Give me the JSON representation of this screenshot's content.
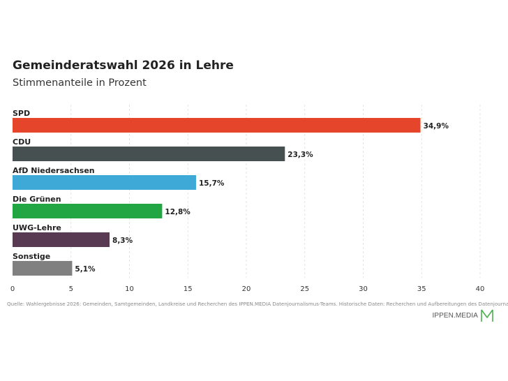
{
  "title": "Gemeinderatswahl 2026 in Lehre",
  "subtitle": "Stimmenanteile in Prozent",
  "source": "Quelle: Wahlergebnisse 2026: Gemeinden, Samtgemeinden, Landkreise und Recherchen des IPPEN.MEDIA Datenjournalismus-Teams. Historische Daten: Recherchen und Aufbereitungen des Datenjournalismus-Teams",
  "brand": {
    "name": "IPPEN.MEDIA",
    "logo_icon": "ippen-media-m-logo",
    "logo_color": "#4caf50"
  },
  "chart_data": {
    "type": "bar",
    "orientation": "horizontal",
    "categories": [
      "SPD",
      "CDU",
      "AfD Niedersachsen",
      "Die Grünen",
      "UWG-Lehre",
      "Sonstige"
    ],
    "values": [
      34.9,
      23.3,
      15.7,
      12.8,
      8.3,
      5.1
    ],
    "value_labels": [
      "34,9%",
      "23,3%",
      "15,7%",
      "12,8%",
      "8,3%",
      "5,1%"
    ],
    "colors": [
      "#e5452b",
      "#465051",
      "#3ea9d6",
      "#22a543",
      "#583a52",
      "#808080"
    ],
    "xlim": [
      0,
      40
    ],
    "xticks": [
      0,
      5,
      10,
      15,
      20,
      25,
      30,
      35,
      40
    ],
    "grid": "vertical dashed",
    "legend": "none"
  }
}
